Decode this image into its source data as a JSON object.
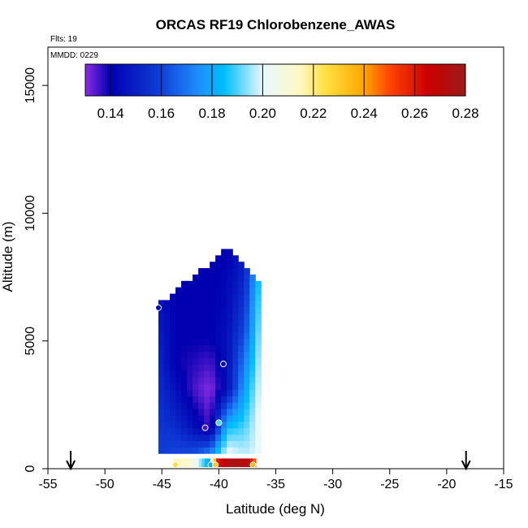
{
  "chart_data": {
    "type": "heatmap",
    "title": "ORCAS RF19 Chlorobenzene_AWAS",
    "annotations": {
      "flights": "Flts: 19",
      "mmdd": "MMDD: 0229"
    },
    "xlabel": "Latitude (deg N)",
    "ylabel": "Altitude (m)",
    "xlim": [
      -55,
      -15
    ],
    "ylim": [
      0,
      16500
    ],
    "x_ticks": [
      -55,
      -50,
      -45,
      -40,
      -35,
      -30,
      -25,
      -20,
      -15
    ],
    "x_tick_labels": [
      "-55",
      "-50",
      "-45",
      "-40",
      "-35",
      "-30",
      "-25",
      "-20",
      "-15"
    ],
    "y_ticks": [
      0,
      5000,
      10000,
      15000
    ],
    "y_tick_labels": [
      "0",
      "5000",
      "10000",
      "15000"
    ],
    "grid": false,
    "colorbar": {
      "placement": "top-inside",
      "range": [
        0.13,
        0.28
      ],
      "ticks": [
        0.14,
        0.16,
        0.18,
        0.2,
        0.22,
        0.24,
        0.26,
        0.28
      ],
      "tick_labels": [
        "0.14",
        "0.16",
        "0.18",
        "0.20",
        "0.22",
        "0.24",
        "0.26",
        "0.28"
      ],
      "stops": [
        {
          "v": 0.13,
          "color": "#8b2be2"
        },
        {
          "v": 0.14,
          "color": "#0000b0"
        },
        {
          "v": 0.16,
          "color": "#1040d8"
        },
        {
          "v": 0.175,
          "color": "#1e90ff"
        },
        {
          "v": 0.185,
          "color": "#00bfff"
        },
        {
          "v": 0.2,
          "color": "#e8f8ff"
        },
        {
          "v": 0.215,
          "color": "#fff8c0"
        },
        {
          "v": 0.225,
          "color": "#ffe040"
        },
        {
          "v": 0.24,
          "color": "#ffa500"
        },
        {
          "v": 0.25,
          "color": "#ff4500"
        },
        {
          "v": 0.265,
          "color": "#cc0000"
        },
        {
          "v": 0.28,
          "color": "#9b1b1b"
        }
      ]
    },
    "markers": {
      "arrows_at_lat": [
        -53,
        -18.3
      ],
      "samples": [
        {
          "lat": -45.3,
          "alt": 6300,
          "value": 0.14
        },
        {
          "lat": -39.6,
          "alt": 4100,
          "value": 0.145
        },
        {
          "lat": -41.2,
          "alt": 1600,
          "value": 0.135
        },
        {
          "lat": -40.0,
          "alt": 1800,
          "value": 0.19
        },
        {
          "lat": -43.8,
          "alt": 150,
          "value": 0.225
        },
        {
          "lat": -40.7,
          "alt": 150,
          "value": 0.18
        },
        {
          "lat": -40.3,
          "alt": 150,
          "value": 0.23
        },
        {
          "lat": -37.0,
          "alt": 150,
          "value": 0.235
        }
      ]
    },
    "field": {
      "description_free": true,
      "profiles": [
        {
          "lat": -45.3,
          "top": 6400,
          "values": [
            [
              0,
              0.16
            ],
            [
              2000,
              0.155
            ],
            [
              4000,
              0.15
            ],
            [
              6400,
              0.145
            ]
          ]
        },
        {
          "lat": -44.0,
          "top": 6900,
          "values": [
            [
              0,
              0.165
            ],
            [
              2000,
              0.15
            ],
            [
              4000,
              0.14
            ],
            [
              6900,
              0.14
            ]
          ]
        },
        {
          "lat": -42.5,
          "top": 7400,
          "values": [
            [
              0,
              0.17
            ],
            [
              1500,
              0.145
            ],
            [
              3000,
              0.135
            ],
            [
              5000,
              0.14
            ],
            [
              7400,
              0.14
            ]
          ]
        },
        {
          "lat": -41.0,
          "top": 7900,
          "values": [
            [
              0,
              0.19
            ],
            [
              1500,
              0.135
            ],
            [
              3000,
              0.13
            ],
            [
              5000,
              0.14
            ],
            [
              7900,
              0.14
            ]
          ]
        },
        {
          "lat": -39.5,
          "top": 8600,
          "values": [
            [
              0,
              0.21
            ],
            [
              1500,
              0.185
            ],
            [
              3000,
              0.145
            ],
            [
              5000,
              0.145
            ],
            [
              8600,
              0.14
            ]
          ]
        },
        {
          "lat": -38.0,
          "top": 7900,
          "values": [
            [
              0,
              0.2
            ],
            [
              1500,
              0.19
            ],
            [
              3500,
              0.175
            ],
            [
              5500,
              0.16
            ],
            [
              7900,
              0.15
            ]
          ]
        },
        {
          "lat": -36.8,
          "top": 7300,
          "values": [
            [
              0,
              0.2
            ],
            [
              2000,
              0.2
            ],
            [
              4000,
              0.195
            ],
            [
              7300,
              0.185
            ]
          ]
        }
      ],
      "surface_strip": [
        {
          "lat": -44.0,
          "value": 0.215
        },
        {
          "lat": -42.5,
          "value": 0.21
        },
        {
          "lat": -41.0,
          "value": 0.18
        },
        {
          "lat": -40.2,
          "value": 0.26
        },
        {
          "lat": -39.0,
          "value": 0.275
        },
        {
          "lat": -37.5,
          "value": 0.27
        },
        {
          "lat": -36.8,
          "value": 0.24
        }
      ]
    }
  }
}
